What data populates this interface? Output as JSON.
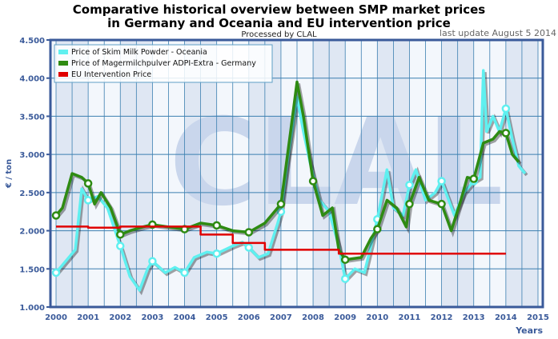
{
  "chart_data": {
    "type": "line",
    "title_line1": "Comparative historical overview between SMP market prices",
    "title_line2": "in Germany and Oceania and EU intervention price",
    "subtitle": "Processed by CLAL",
    "update_note": "last update August 5 2014",
    "ylabel": "€ / ton",
    "xlabel": "Years",
    "xlim": [
      2000,
      2015
    ],
    "ylim": [
      1000,
      4500
    ],
    "yticks": [
      "1.000",
      "1.500",
      "2.000",
      "2.500",
      "3.000",
      "3.500",
      "4.000",
      "4.500"
    ],
    "xticks": [
      "2000",
      "2001",
      "2002",
      "2003",
      "2004",
      "2005",
      "2006",
      "2007",
      "2008",
      "2009",
      "2010",
      "2011",
      "2012",
      "2013",
      "2014",
      "2015"
    ],
    "legend_position": "top-left",
    "series": [
      {
        "name": "Price of Skim Milk Powder - Oceania",
        "color": "#5ff0f0",
        "points": [
          [
            2000,
            1450
          ],
          [
            2000.3,
            1600
          ],
          [
            2000.6,
            1750
          ],
          [
            2000.8,
            2550
          ],
          [
            2001,
            2400
          ],
          [
            2001.3,
            2450
          ],
          [
            2001.6,
            2300
          ],
          [
            2002,
            1800
          ],
          [
            2002.3,
            1400
          ],
          [
            2002.6,
            1220
          ],
          [
            2002.85,
            1500
          ],
          [
            2003,
            1600
          ],
          [
            2003.4,
            1450
          ],
          [
            2003.7,
            1520
          ],
          [
            2004,
            1450
          ],
          [
            2004.3,
            1650
          ],
          [
            2004.7,
            1720
          ],
          [
            2005,
            1700
          ],
          [
            2005.5,
            1800
          ],
          [
            2005.8,
            1850
          ],
          [
            2006,
            1780
          ],
          [
            2006.3,
            1650
          ],
          [
            2006.6,
            1700
          ],
          [
            2006.9,
            2100
          ],
          [
            2007,
            2250
          ],
          [
            2007.2,
            2900
          ],
          [
            2007.5,
            3750
          ],
          [
            2007.7,
            3300
          ],
          [
            2007.9,
            2900
          ],
          [
            2008.2,
            2400
          ],
          [
            2008.5,
            2250
          ],
          [
            2008.8,
            1800
          ],
          [
            2009,
            1370
          ],
          [
            2009.3,
            1500
          ],
          [
            2009.6,
            1450
          ],
          [
            2009.8,
            1800
          ],
          [
            2010,
            2150
          ],
          [
            2010.3,
            2800
          ],
          [
            2010.5,
            2300
          ],
          [
            2010.8,
            2200
          ],
          [
            2011,
            2600
          ],
          [
            2011.2,
            2800
          ],
          [
            2011.5,
            2400
          ],
          [
            2011.8,
            2500
          ],
          [
            2012,
            2650
          ],
          [
            2012.4,
            2200
          ],
          [
            2012.7,
            2500
          ],
          [
            2013,
            2650
          ],
          [
            2013.2,
            2700
          ],
          [
            2013.3,
            4100
          ],
          [
            2013.4,
            3300
          ],
          [
            2013.6,
            3500
          ],
          [
            2013.8,
            3300
          ],
          [
            2014,
            3600
          ],
          [
            2014.2,
            3200
          ],
          [
            2014.4,
            2850
          ],
          [
            2014.6,
            2750
          ]
        ]
      },
      {
        "name": "Price of Magermilchpulver ADPI-Extra - Germany",
        "color": "#2e8b12",
        "points": [
          [
            2000,
            2200
          ],
          [
            2000.2,
            2300
          ],
          [
            2000.5,
            2750
          ],
          [
            2000.8,
            2700
          ],
          [
            2001,
            2620
          ],
          [
            2001.2,
            2350
          ],
          [
            2001.4,
            2500
          ],
          [
            2001.7,
            2300
          ],
          [
            2002,
            1950
          ],
          [
            2002.3,
            2000
          ],
          [
            2002.7,
            2050
          ],
          [
            2003,
            2080
          ],
          [
            2003.5,
            2050
          ],
          [
            2004,
            2020
          ],
          [
            2004.5,
            2100
          ],
          [
            2005,
            2070
          ],
          [
            2005.5,
            2000
          ],
          [
            2006,
            1980
          ],
          [
            2006.5,
            2100
          ],
          [
            2007,
            2350
          ],
          [
            2007.3,
            3300
          ],
          [
            2007.5,
            3950
          ],
          [
            2007.7,
            3500
          ],
          [
            2008,
            2650
          ],
          [
            2008.3,
            2200
          ],
          [
            2008.6,
            2300
          ],
          [
            2008.8,
            1750
          ],
          [
            2009,
            1620
          ],
          [
            2009.5,
            1650
          ],
          [
            2009.8,
            1900
          ],
          [
            2010,
            2020
          ],
          [
            2010.3,
            2400
          ],
          [
            2010.6,
            2300
          ],
          [
            2010.9,
            2050
          ],
          [
            2011,
            2350
          ],
          [
            2011.3,
            2700
          ],
          [
            2011.6,
            2400
          ],
          [
            2012,
            2350
          ],
          [
            2012.3,
            2000
          ],
          [
            2012.6,
            2400
          ],
          [
            2012.8,
            2700
          ],
          [
            2013,
            2680
          ],
          [
            2013.3,
            3150
          ],
          [
            2013.6,
            3200
          ],
          [
            2013.8,
            3300
          ],
          [
            2014,
            3280
          ],
          [
            2014.2,
            3000
          ],
          [
            2014.4,
            2900
          ]
        ]
      },
      {
        "name": "EU Intervention Price",
        "color": "#e00000",
        "step": true,
        "points": [
          [
            2000,
            2055
          ],
          [
            2001,
            2040
          ],
          [
            2002,
            2055
          ],
          [
            2004.5,
            1950
          ],
          [
            2005.5,
            1840
          ],
          [
            2006.5,
            1750
          ],
          [
            2008.8,
            1700
          ],
          [
            2014,
            1700
          ]
        ]
      }
    ]
  }
}
